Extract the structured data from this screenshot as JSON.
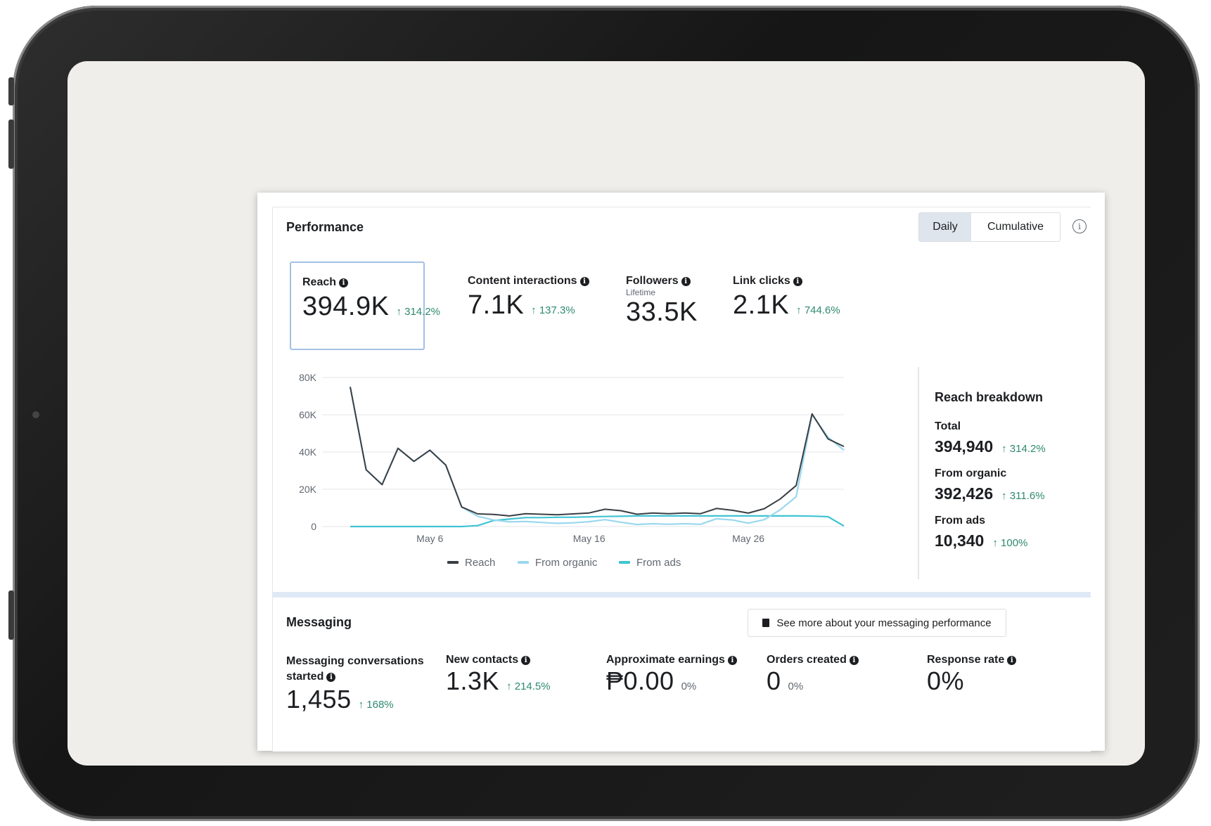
{
  "performance": {
    "title": "Performance",
    "toggle": {
      "daily": "Daily",
      "cumulative": "Cumulative"
    },
    "metrics": [
      {
        "label": "Reach",
        "value": "394.9K",
        "delta": "↑ 314.2%"
      },
      {
        "label": "Content interactions",
        "value": "7.1K",
        "delta": "↑ 137.3%"
      },
      {
        "label": "Followers",
        "sub": "Lifetime",
        "value": "33.5K"
      },
      {
        "label": "Link clicks",
        "value": "2.1K",
        "delta": "↑ 744.6%"
      }
    ]
  },
  "chart_data": {
    "type": "line",
    "y_ticks": [
      "80K",
      "60K",
      "40K",
      "20K",
      "0"
    ],
    "x_ticks": [
      "May 6",
      "May 16",
      "May 26"
    ],
    "ylim": [
      0,
      80000
    ],
    "x": [
      1,
      2,
      3,
      4,
      5,
      6,
      7,
      8,
      9,
      10,
      11,
      12,
      13,
      14,
      15,
      16,
      17,
      18,
      19,
      20,
      21,
      22,
      23,
      24,
      25,
      26,
      27,
      28,
      29,
      30,
      31,
      32
    ],
    "series": [
      {
        "name": "Reach",
        "color": "#3a3f44",
        "values": [
          75000,
          30500,
          22500,
          42000,
          35000,
          41000,
          33000,
          10500,
          6800,
          6500,
          5700,
          6900,
          6600,
          6300,
          6800,
          7300,
          9300,
          8500,
          6600,
          7300,
          6900,
          7300,
          6900,
          9700,
          8700,
          7200,
          9600,
          14800,
          22000,
          60500,
          47000,
          43000
        ]
      },
      {
        "name": "From organic",
        "color": "#9ad8ee",
        "values": [
          75000,
          30500,
          22500,
          42000,
          35000,
          41000,
          33000,
          10500,
          5500,
          3500,
          2500,
          2700,
          2200,
          1700,
          2000,
          2600,
          3700,
          2300,
          1100,
          1500,
          1200,
          1500,
          1200,
          4200,
          3500,
          1800,
          3700,
          9000,
          16000,
          60000,
          48000,
          41000
        ]
      },
      {
        "name": "From ads",
        "color": "#40c4d4",
        "values": [
          0,
          0,
          0,
          0,
          0,
          0,
          0,
          0,
          500,
          3200,
          4000,
          4800,
          4800,
          5000,
          5000,
          5200,
          5400,
          5500,
          5700,
          5700,
          5700,
          5700,
          5700,
          5700,
          5700,
          5700,
          5700,
          5700,
          5700,
          5600,
          5300,
          300
        ]
      }
    ]
  },
  "breakdown": {
    "title": "Reach breakdown",
    "items": [
      {
        "label": "Total",
        "value": "394,940",
        "delta": "↑ 314.2%"
      },
      {
        "label": "From organic",
        "value": "392,426",
        "delta": "↑ 311.6%"
      },
      {
        "label": "From ads",
        "value": "10,340",
        "delta": "↑ 100%"
      }
    ]
  },
  "messaging": {
    "title": "Messaging",
    "button": "See more about your messaging performance",
    "metrics": [
      {
        "label": "Messaging conversations started",
        "value": "1,455",
        "delta": "↑ 168%"
      },
      {
        "label": "New contacts",
        "value": "1.3K",
        "delta": "↑ 214.5%"
      },
      {
        "label": "Approximate earnings",
        "value": "₱0.00",
        "delta": "0%"
      },
      {
        "label": "Orders created",
        "value": "0",
        "delta": "0%"
      },
      {
        "label": "Response rate",
        "value": "0%"
      }
    ]
  }
}
